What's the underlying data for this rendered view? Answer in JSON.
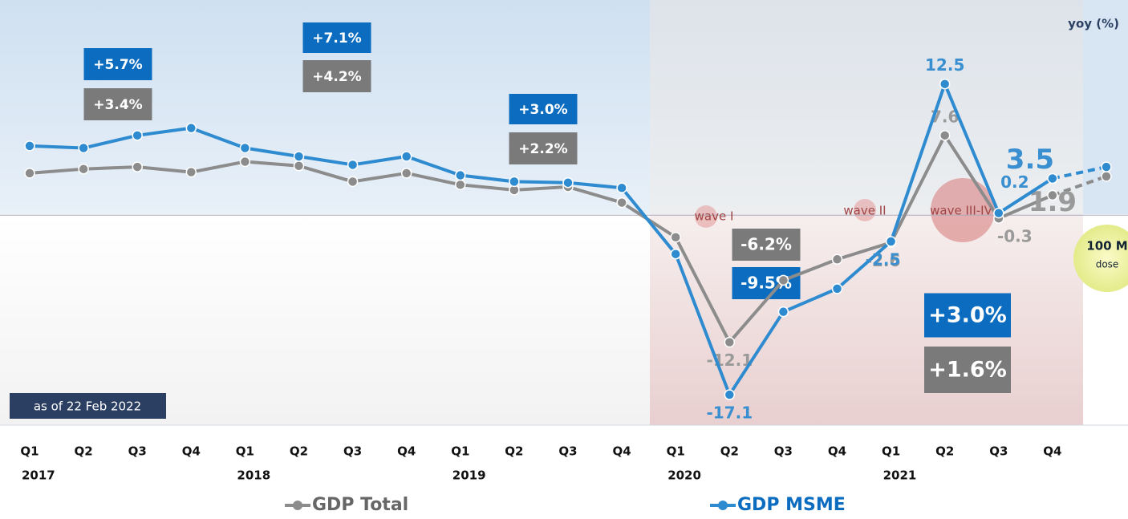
{
  "chart_data": {
    "type": "line",
    "axis_label": "yoy (%)",
    "note": "as of 22 Feb 2022",
    "categories": [
      "Q1",
      "Q2",
      "Q3",
      "Q4",
      "Q1",
      "Q2",
      "Q3",
      "Q4",
      "Q1",
      "Q2",
      "Q3",
      "Q4",
      "Q1",
      "Q2",
      "Q3",
      "Q4",
      "Q1",
      "Q2",
      "Q3",
      "Q4",
      null
    ],
    "years": [
      "2017",
      null,
      null,
      null,
      "2018",
      null,
      null,
      null,
      "2019",
      null,
      null,
      null,
      "2020",
      null,
      null,
      null,
      "2021",
      null,
      null,
      null,
      null
    ],
    "ylim": [
      -20,
      20.5
    ],
    "series": [
      {
        "name": "GDP Total",
        "color": "#8c8c8c",
        "label_color": "#9a9a9a",
        "values": [
          4.0,
          4.4,
          4.6,
          4.1,
          5.1,
          4.7,
          3.2,
          4.0,
          2.9,
          2.4,
          2.7,
          1.2,
          -2.1,
          -12.1,
          -6.2,
          -4.2,
          -2.6,
          7.6,
          -0.3,
          1.9,
          3.7
        ],
        "value_labels": [
          null,
          null,
          null,
          null,
          null,
          null,
          null,
          null,
          null,
          null,
          null,
          null,
          null,
          "-12.1",
          null,
          null,
          "-2.6",
          "7.6",
          "-0.3",
          "1.9",
          null
        ]
      },
      {
        "name": "GDP MSME",
        "color": "#2f8bd0",
        "label_color": "#3a8fd0",
        "values": [
          6.6,
          6.4,
          7.6,
          8.3,
          6.4,
          5.6,
          4.8,
          5.6,
          3.8,
          3.2,
          3.1,
          2.6,
          -3.7,
          -17.1,
          -9.2,
          -7.0,
          -2.5,
          12.5,
          0.2,
          3.5,
          4.6
        ],
        "value_labels": [
          null,
          null,
          null,
          null,
          null,
          null,
          null,
          null,
          null,
          null,
          null,
          null,
          null,
          "-17.1",
          null,
          null,
          "-2.5",
          "12.5",
          "0.2",
          "3.5",
          null
        ]
      }
    ],
    "annotations": [
      {
        "text": "+5.7%",
        "color": "#0b6cc0"
      },
      {
        "text": "+3.4%",
        "color": "#7a7a7a"
      },
      {
        "text": "+7.1%",
        "color": "#0b6cc0"
      },
      {
        "text": "+4.2%",
        "color": "#7a7a7a"
      },
      {
        "text": "+3.0%",
        "color": "#0b6cc0"
      },
      {
        "text": "+2.2%",
        "color": "#7a7a7a"
      },
      {
        "text": "-6.2%",
        "color": "#7a7a7a"
      },
      {
        "text": "-9.5%",
        "color": "#0b6cc0"
      },
      {
        "text": "+3.0%",
        "color": "#0b6cc0"
      },
      {
        "text": "+1.6%",
        "color": "#7a7a7a"
      }
    ],
    "waves": [
      "wave I",
      "wave II",
      "wave III-IV"
    ],
    "vaccine": {
      "amount": "100 M",
      "unit": "dose"
    }
  }
}
